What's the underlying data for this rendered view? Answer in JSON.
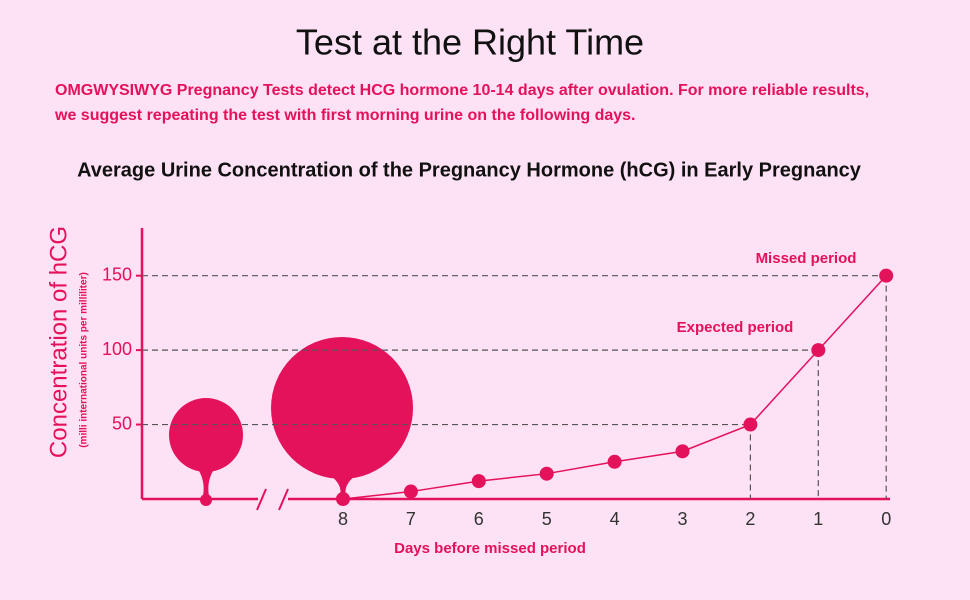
{
  "header": {
    "title": "Test at the Right Time",
    "description": [
      "OMGWYSIWYG Pregnancy Tests detect HCG hormone 10-14 days after ovulation. For more reliable results,",
      "we suggest repeating the test with first morning urine on the following days."
    ]
  },
  "chart_data": {
    "type": "line",
    "title": "Average Urine Concentration of the Pregnancy Hormone (hCG) in Early Pregnancy",
    "y_label": "Concentration of hCG",
    "y_sublabel": "(milli international units per milliliter)",
    "x_label": "Days  before missed  period",
    "categories": [
      "8",
      "7",
      "6",
      "5",
      "4",
      "3",
      "2",
      "1",
      "0"
    ],
    "values": [
      0,
      5,
      12,
      17,
      25,
      32,
      50,
      100,
      150
    ],
    "color": "#e4115b",
    "ylim": [
      0,
      180
    ],
    "yticks": [
      50,
      100,
      150
    ],
    "annotations": [
      "Missed period",
      "Expected period"
    ]
  }
}
